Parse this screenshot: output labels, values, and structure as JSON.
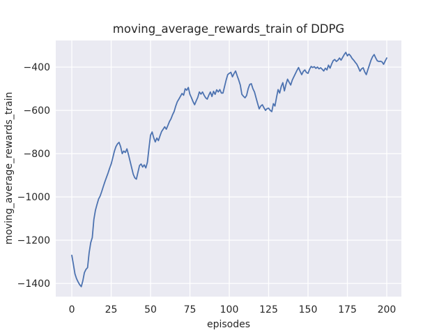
{
  "window": {
    "kind": "matplotlib-figure",
    "background": "#ffffff"
  },
  "chart_data": {
    "type": "line",
    "title": "moving_average_rewards_train of DDPG",
    "xlabel": "episodes",
    "ylabel": "moving_average_rewards_train",
    "x_ticks": [
      0,
      25,
      50,
      75,
      100,
      125,
      150,
      175,
      200
    ],
    "y_ticks": [
      -400,
      -600,
      -800,
      -1000,
      -1200,
      -1400
    ],
    "xlim": [
      -10.2,
      209.3
    ],
    "ylim": [
      -1461,
      -277
    ],
    "grid": true,
    "legend": false,
    "style": "seaborn-darkgrid",
    "plot_bg": "#eaeaf2",
    "grid_color": "#ffffff",
    "line_color": "#4c72b0",
    "text_color": "#262626",
    "x_start": 0,
    "x_step": 1,
    "series_name": "moving_average_rewards_train",
    "y": [
      -1270,
      -1312,
      -1356,
      -1378,
      -1393,
      -1406,
      -1415,
      -1388,
      -1350,
      -1335,
      -1327,
      -1258,
      -1212,
      -1188,
      -1105,
      -1062,
      -1035,
      -1010,
      -996,
      -975,
      -952,
      -930,
      -910,
      -890,
      -868,
      -848,
      -820,
      -790,
      -768,
      -755,
      -748,
      -768,
      -800,
      -788,
      -795,
      -778,
      -805,
      -835,
      -865,
      -895,
      -912,
      -918,
      -886,
      -855,
      -848,
      -862,
      -852,
      -866,
      -840,
      -775,
      -715,
      -700,
      -726,
      -746,
      -728,
      -740,
      -718,
      -698,
      -687,
      -676,
      -687,
      -670,
      -652,
      -639,
      -620,
      -605,
      -580,
      -560,
      -548,
      -535,
      -522,
      -530,
      -500,
      -507,
      -494,
      -526,
      -542,
      -560,
      -574,
      -556,
      -540,
      -515,
      -525,
      -515,
      -530,
      -542,
      -548,
      -530,
      -515,
      -536,
      -512,
      -526,
      -505,
      -515,
      -504,
      -520,
      -520,
      -490,
      -460,
      -435,
      -429,
      -424,
      -445,
      -430,
      -418,
      -440,
      -460,
      -483,
      -526,
      -535,
      -542,
      -531,
      -500,
      -480,
      -477,
      -500,
      -515,
      -542,
      -568,
      -593,
      -580,
      -574,
      -588,
      -600,
      -592,
      -590,
      -600,
      -606,
      -569,
      -580,
      -540,
      -504,
      -520,
      -490,
      -472,
      -510,
      -480,
      -456,
      -470,
      -483,
      -460,
      -445,
      -430,
      -415,
      -402,
      -420,
      -435,
      -420,
      -413,
      -425,
      -429,
      -410,
      -397,
      -402,
      -398,
      -406,
      -400,
      -408,
      -403,
      -410,
      -418,
      -405,
      -413,
      -391,
      -405,
      -386,
      -370,
      -365,
      -374,
      -368,
      -358,
      -368,
      -355,
      -342,
      -332,
      -348,
      -340,
      -348,
      -360,
      -368,
      -378,
      -387,
      -402,
      -419,
      -408,
      -403,
      -422,
      -435,
      -412,
      -390,
      -368,
      -352,
      -342,
      -358,
      -371,
      -374,
      -373,
      -376,
      -387,
      -372,
      -358
    ]
  }
}
